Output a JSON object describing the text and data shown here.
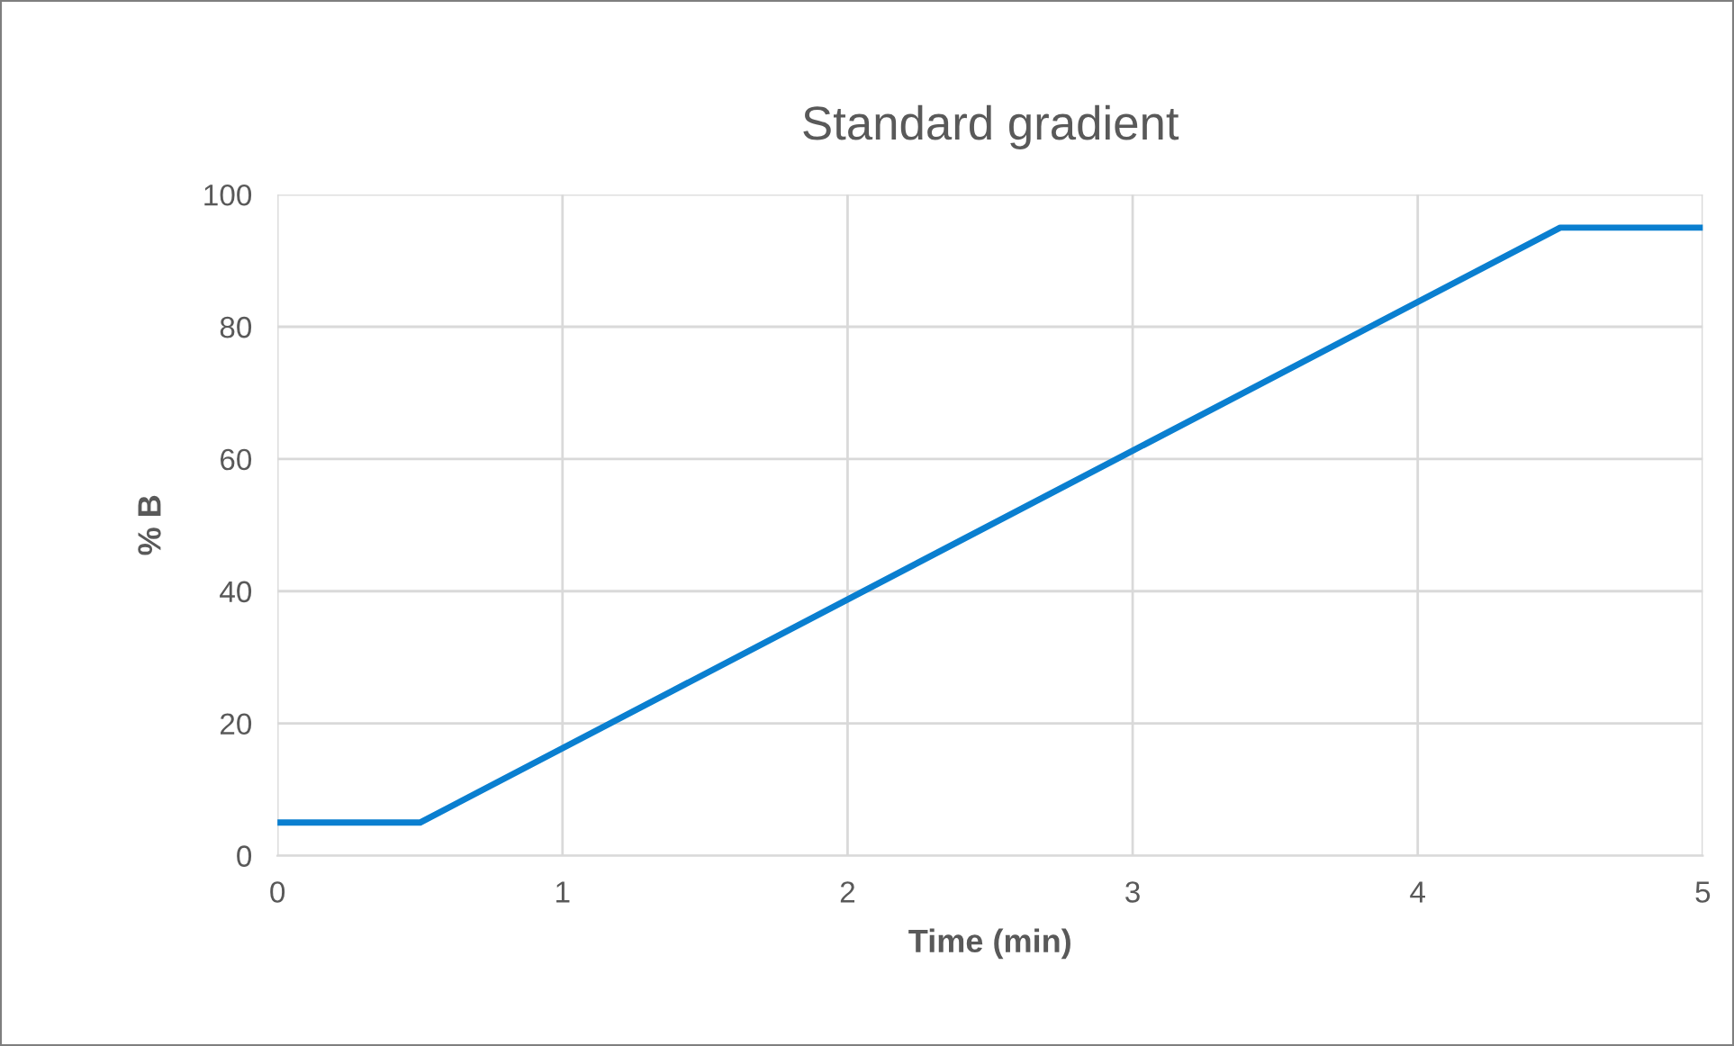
{
  "chart_data": {
    "type": "line",
    "title": "Standard gradient",
    "xlabel": "Time (min)",
    "ylabel": "% B",
    "x": [
      0,
      0.5,
      4.5,
      5
    ],
    "series": [
      {
        "color": "#0a7fd0",
        "values": [
          5,
          5,
          95,
          95
        ]
      }
    ],
    "xlim": [
      0,
      5
    ],
    "xticks": [
      0,
      1,
      2,
      3,
      4,
      5
    ],
    "ylim": [
      0,
      100
    ],
    "yticks": [
      0,
      20,
      40,
      60,
      80,
      100
    ],
    "grid": true,
    "legend": false,
    "marker": "none",
    "line_style": "solid"
  }
}
